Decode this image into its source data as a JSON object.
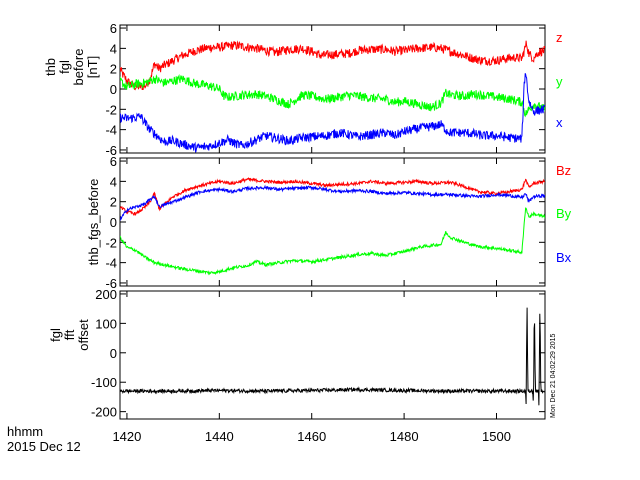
{
  "colors": {
    "red": "#ff0000",
    "green": "#00ff00",
    "blue": "#0000ff",
    "black": "#000000"
  },
  "footer": {
    "time_format": "hhmm",
    "date": "2015 Dec 12"
  },
  "x_axis": {
    "range": [
      1418.5,
      1510.5
    ],
    "ticks": [
      1420,
      1440,
      1460,
      1480,
      1500
    ]
  },
  "chart_data": [
    {
      "type": "line",
      "title": "",
      "ylabel": [
        "thb",
        "fgl",
        "before",
        "[nT]"
      ],
      "ylim": [
        -6.3,
        6.3
      ],
      "yticks": [
        6,
        4,
        2,
        0,
        -2,
        -4,
        -6
      ],
      "series": [
        {
          "name": "z",
          "color": "red",
          "x": [
            1418.5,
            1419,
            1420,
            1421,
            1422,
            1424,
            1425,
            1426,
            1427,
            1428,
            1430,
            1432,
            1435,
            1438,
            1440,
            1443,
            1445,
            1448,
            1450,
            1452,
            1455,
            1458,
            1460,
            1462,
            1465,
            1468,
            1470,
            1473,
            1476,
            1478,
            1480,
            1483,
            1486,
            1488,
            1490,
            1493,
            1495,
            1497,
            1500,
            1502,
            1504,
            1505.5,
            1506.5,
            1507,
            1508,
            1509,
            1510.5
          ],
          "values": [
            2.0,
            1.5,
            0.8,
            0.4,
            0.2,
            0.3,
            1.0,
            2.5,
            2.0,
            2.3,
            2.8,
            3.3,
            3.8,
            4.1,
            4.1,
            4.3,
            4.2,
            4.0,
            3.8,
            3.6,
            3.9,
            4.0,
            3.7,
            3.3,
            3.4,
            3.5,
            3.8,
            3.9,
            3.9,
            3.7,
            3.8,
            4.0,
            4.1,
            4.0,
            3.7,
            3.3,
            3.0,
            2.8,
            2.8,
            3.0,
            3.1,
            3.0,
            4.5,
            3.5,
            3.0,
            3.6,
            3.8
          ]
        },
        {
          "name": "y",
          "color": "green",
          "x": [
            1418.5,
            1420,
            1422,
            1424,
            1425,
            1426,
            1428,
            1430,
            1432,
            1435,
            1438,
            1440,
            1441,
            1442,
            1445,
            1448,
            1450,
            1452,
            1455,
            1458,
            1460,
            1463,
            1466,
            1468,
            1470,
            1473,
            1476,
            1478,
            1480,
            1483,
            1486,
            1488,
            1489,
            1490,
            1493,
            1495,
            1497,
            1500,
            1503,
            1505.5,
            1506.3,
            1507,
            1508,
            1510.5
          ],
          "values": [
            0.8,
            0.2,
            0.5,
            0.6,
            0.8,
            1.0,
            0.6,
            0.8,
            1.0,
            0.5,
            0.3,
            0.0,
            -0.7,
            -0.8,
            -0.6,
            -0.5,
            -0.7,
            -1.0,
            -1.5,
            -0.6,
            -0.7,
            -1.0,
            -0.8,
            -0.6,
            -0.7,
            -0.9,
            -1.0,
            -1.3,
            -1.2,
            -1.5,
            -1.8,
            -1.4,
            -0.4,
            -0.6,
            -0.7,
            -0.5,
            -0.6,
            -0.8,
            -1.0,
            -1.3,
            -2.5,
            -2.0,
            -1.5,
            -2.0
          ]
        },
        {
          "name": "x",
          "color": "blue",
          "x": [
            1418.5,
            1420,
            1422,
            1423,
            1424,
            1425,
            1426,
            1428,
            1430,
            1432,
            1435,
            1438,
            1440,
            1442,
            1443,
            1445,
            1448,
            1450,
            1453,
            1455,
            1458,
            1460,
            1463,
            1466,
            1468,
            1470,
            1473,
            1476,
            1478,
            1480,
            1482,
            1484,
            1486,
            1488,
            1489,
            1490,
            1493,
            1495,
            1497,
            1500,
            1503,
            1505.5,
            1506,
            1506.3,
            1507,
            1508,
            1510.5
          ],
          "values": [
            -2.8,
            -2.9,
            -2.8,
            -2.7,
            -3.4,
            -4.0,
            -4.4,
            -5.2,
            -5.1,
            -5.4,
            -5.8,
            -5.6,
            -5.3,
            -5.0,
            -5.3,
            -5.6,
            -5.0,
            -4.6,
            -4.9,
            -5.1,
            -4.8,
            -4.7,
            -4.6,
            -4.3,
            -4.5,
            -4.7,
            -4.5,
            -4.3,
            -4.6,
            -4.2,
            -4.0,
            -3.8,
            -3.7,
            -3.5,
            -4.0,
            -4.3,
            -4.3,
            -4.4,
            -4.6,
            -4.6,
            -4.8,
            -4.9,
            0.5,
            1.8,
            -1.2,
            -2.2,
            -2.0
          ]
        }
      ],
      "legend": [
        {
          "label": "z",
          "color": "red"
        },
        {
          "label": "y",
          "color": "green"
        },
        {
          "label": "x",
          "color": "blue"
        }
      ]
    },
    {
      "type": "line",
      "title": "",
      "ylabel": [
        "thb_fgs_before"
      ],
      "ylim": [
        -6.3,
        6.3
      ],
      "yticks": [
        6,
        4,
        2,
        0,
        -2,
        -4,
        -6
      ],
      "series": [
        {
          "name": "Bz",
          "color": "red",
          "x": [
            1418.5,
            1420,
            1422,
            1424,
            1425,
            1426,
            1427,
            1430,
            1433,
            1436,
            1440,
            1443,
            1446,
            1450,
            1453,
            1456,
            1460,
            1463,
            1466,
            1470,
            1473,
            1476,
            1480,
            1483,
            1486,
            1490,
            1493,
            1496,
            1500,
            1503,
            1505.5,
            1506.3,
            1507,
            1508,
            1510.5
          ],
          "values": [
            1.5,
            1.0,
            0.8,
            1.5,
            2.0,
            2.8,
            1.3,
            2.5,
            3.2,
            3.6,
            4.0,
            3.8,
            4.2,
            4.0,
            3.9,
            4.0,
            3.8,
            3.6,
            3.7,
            3.8,
            4.0,
            3.8,
            3.9,
            4.0,
            3.8,
            3.9,
            3.5,
            3.0,
            2.8,
            3.0,
            3.2,
            4.2,
            3.4,
            3.8,
            4.0
          ]
        },
        {
          "name": "By",
          "color": "green",
          "x": [
            1418.5,
            1420,
            1422,
            1424,
            1426,
            1428,
            1430,
            1432,
            1435,
            1438,
            1440,
            1443,
            1446,
            1448,
            1450,
            1453,
            1456,
            1460,
            1463,
            1466,
            1470,
            1473,
            1476,
            1480,
            1483,
            1486,
            1488,
            1489,
            1490,
            1493,
            1496,
            1500,
            1503,
            1505.5,
            1506.3,
            1507,
            1508,
            1510.5
          ],
          "values": [
            -1.5,
            -2.5,
            -2.8,
            -3.5,
            -4.0,
            -4.2,
            -4.4,
            -4.6,
            -4.8,
            -5.0,
            -4.9,
            -4.5,
            -4.3,
            -3.9,
            -4.2,
            -4.0,
            -3.8,
            -3.9,
            -3.7,
            -3.5,
            -3.2,
            -3.1,
            -3.3,
            -2.9,
            -2.5,
            -2.3,
            -2.2,
            -1.0,
            -1.5,
            -2.0,
            -2.4,
            -2.6,
            -2.8,
            -3.0,
            1.5,
            0.5,
            0.8,
            0.5
          ]
        },
        {
          "name": "Bx",
          "color": "blue",
          "x": [
            1418.5,
            1420,
            1422,
            1424,
            1425,
            1426,
            1427,
            1430,
            1433,
            1436,
            1440,
            1443,
            1446,
            1450,
            1453,
            1456,
            1460,
            1463,
            1466,
            1470,
            1473,
            1476,
            1480,
            1483,
            1486,
            1490,
            1493,
            1496,
            1500,
            1503,
            1505.5,
            1506.3,
            1507,
            1508,
            1510.5
          ],
          "values": [
            0.2,
            1.2,
            1.5,
            1.8,
            2.2,
            2.5,
            1.5,
            2.0,
            2.5,
            3.0,
            3.2,
            3.0,
            3.3,
            3.4,
            3.2,
            3.3,
            3.4,
            3.2,
            3.0,
            3.1,
            3.0,
            2.8,
            2.9,
            2.8,
            2.7,
            2.7,
            2.6,
            2.5,
            2.7,
            2.6,
            2.4,
            2.8,
            2.0,
            2.5,
            2.6
          ]
        }
      ],
      "legend": [
        {
          "label": "Bz",
          "color": "red"
        },
        {
          "label": "By",
          "color": "green"
        },
        {
          "label": "Bx",
          "color": "blue"
        }
      ]
    },
    {
      "type": "line",
      "title": "",
      "ylabel": [
        "fgl",
        "fft",
        "offset"
      ],
      "ylim": [
        -225,
        210
      ],
      "yticks": [
        200,
        100,
        0,
        -100,
        -200
      ],
      "series": [
        {
          "name": "offset",
          "color": "black",
          "x": [
            1418.5,
            1430,
            1440,
            1450,
            1460,
            1470,
            1480,
            1490,
            1500,
            1505,
            1506.3,
            1506.4,
            1506.6,
            1506.8,
            1507.9,
            1508,
            1508.2,
            1508.4,
            1509.1,
            1509.2,
            1509.4,
            1509.6,
            1510.5
          ],
          "values": [
            -130,
            -130,
            -128,
            -130,
            -128,
            -125,
            -128,
            -130,
            -130,
            -130,
            -130,
            -195,
            180,
            -130,
            -130,
            -195,
            185,
            -130,
            -130,
            -195,
            185,
            -130,
            -130
          ]
        }
      ],
      "legend": []
    }
  ],
  "side_label": "Mon Dec 21 04:02:29 2015"
}
